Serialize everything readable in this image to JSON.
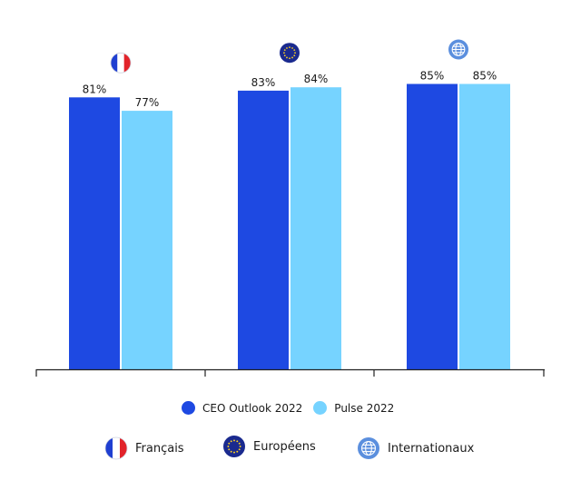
{
  "chart_data": {
    "type": "bar",
    "categories": [
      "Français",
      "Européens",
      "Internationaux"
    ],
    "series": [
      {
        "name": "CEO Outlook 2022",
        "values": [
          81,
          83,
          85
        ],
        "color": "#1e49e2",
        "labels": [
          "81%",
          "83%",
          "85%"
        ]
      },
      {
        "name": "Pulse 2022",
        "values": [
          77,
          84,
          85
        ],
        "color": "#76d3ff",
        "labels": [
          "77%",
          "84%",
          "85%"
        ]
      }
    ],
    "category_icons": [
      "france-flag-icon",
      "eu-flag-icon",
      "globe-icon"
    ],
    "ylim": [
      0,
      100
    ],
    "grid": false,
    "legend_position": "bottom"
  },
  "legend": {
    "series": [
      {
        "label": "CEO Outlook 2022",
        "color": "#1e49e2"
      },
      {
        "label": "Pulse 2022",
        "color": "#76d3ff"
      }
    ],
    "regions": [
      {
        "label": "Français",
        "icon": "france-flag-icon"
      },
      {
        "label": "Européens",
        "icon": "eu-flag-icon"
      },
      {
        "label": "Internationaux",
        "icon": "globe-icon"
      }
    ]
  }
}
